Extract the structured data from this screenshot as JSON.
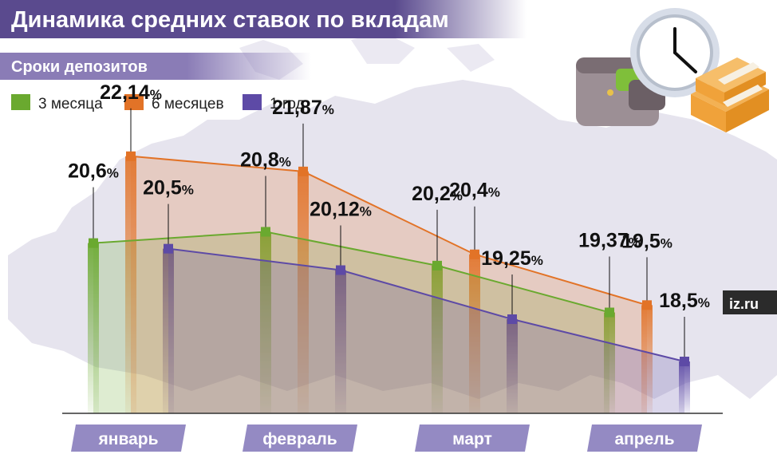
{
  "title": "Динамика средних ставок по вкладам",
  "subtitle": "Сроки депозитов",
  "brand": "iz.ru",
  "colors": {
    "title_band": "#5a4a8e",
    "subtitle_band": "#8a7cb6",
    "month_badge": "#948ac3",
    "axis": "#333333",
    "map": "#e6e4ee"
  },
  "chart_data": {
    "type": "line",
    "title": "Динамика средних ставок по вкладам",
    "subtitle": "Сроки депозитов",
    "categories": [
      "январь",
      "февраль",
      "март",
      "апрель"
    ],
    "value_suffix": "%",
    "ylim": [
      17,
      23
    ],
    "grid": false,
    "legend": "top-left",
    "series": [
      {
        "name": "3 месяца",
        "color": "#6aa92f",
        "values": [
          20.6,
          20.8,
          20.2,
          19.37
        ],
        "labels": [
          "20,6",
          "20,8",
          "20,2",
          "19,37"
        ]
      },
      {
        "name": "6 месяцев",
        "color": "#e27327",
        "values": [
          22.14,
          21.87,
          20.4,
          19.5
        ],
        "labels": [
          "22,14",
          "21,87",
          "20,4",
          "19,5"
        ]
      },
      {
        "name": "1 год",
        "color": "#5d4aa6",
        "values": [
          20.5,
          20.12,
          19.25,
          18.5
        ],
        "labels": [
          "20,5",
          "20,12",
          "19,25",
          "18,5"
        ]
      }
    ]
  }
}
